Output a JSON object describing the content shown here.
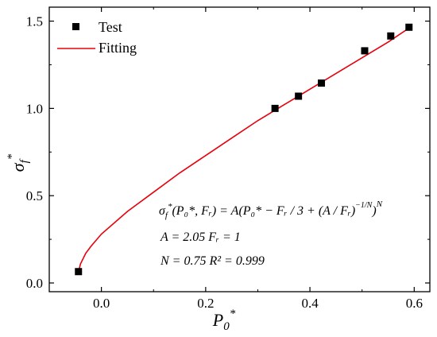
{
  "chart_data": {
    "type": "scatter",
    "xlabel": "P",
    "xlabel_sub": "0",
    "xlabel_sup": "*",
    "ylabel": "σ",
    "ylabel_sub": "f",
    "ylabel_sup": "*",
    "xlim": [
      -0.1,
      0.63
    ],
    "ylim": [
      -0.05,
      1.58
    ],
    "x_ticks": [
      0.0,
      0.2,
      0.4,
      0.6
    ],
    "x_tick_labels": [
      "0.0",
      "0.2",
      "0.4",
      "0.6"
    ],
    "y_ticks": [
      0.0,
      0.5,
      1.0,
      1.5
    ],
    "y_tick_labels": [
      "0.0",
      "0.5",
      "1.0",
      "1.5"
    ],
    "legend_position": "top-left",
    "series": [
      {
        "name": "Test",
        "kind": "scatter",
        "color": "#000000",
        "x": [
          -0.044,
          0.333,
          0.378,
          0.422,
          0.505,
          0.555,
          0.59
        ],
        "y": [
          0.065,
          1.0,
          1.07,
          1.145,
          1.33,
          1.415,
          1.465
        ]
      },
      {
        "name": "Fitting",
        "kind": "line",
        "color": "#e8000b",
        "x": [
          -0.044,
          -0.04,
          -0.03,
          -0.02,
          0.0,
          0.05,
          0.1,
          0.15,
          0.2,
          0.25,
          0.3,
          0.35,
          0.4,
          0.45,
          0.5,
          0.55,
          0.59
        ],
        "y": [
          0.065,
          0.11,
          0.17,
          0.21,
          0.28,
          0.41,
          0.52,
          0.63,
          0.73,
          0.83,
          0.93,
          1.02,
          1.11,
          1.2,
          1.29,
          1.38,
          1.46
        ]
      }
    ],
    "annotation": {
      "equation_lhs": "σ",
      "equation_lhs_sub": "f",
      "equation_lhs_sup": "*",
      "equation_rhs": "(P₀*, Fᵣ) = A(P₀* − Fᵣ / 3 + (A / Fᵣ)",
      "equation_exp1": "−1/N",
      "equation_tail": ")",
      "equation_exp2": "N",
      "line2": "A = 2.05    Fᵣ = 1",
      "line3": "N = 0.75    R² = 0.999"
    }
  }
}
